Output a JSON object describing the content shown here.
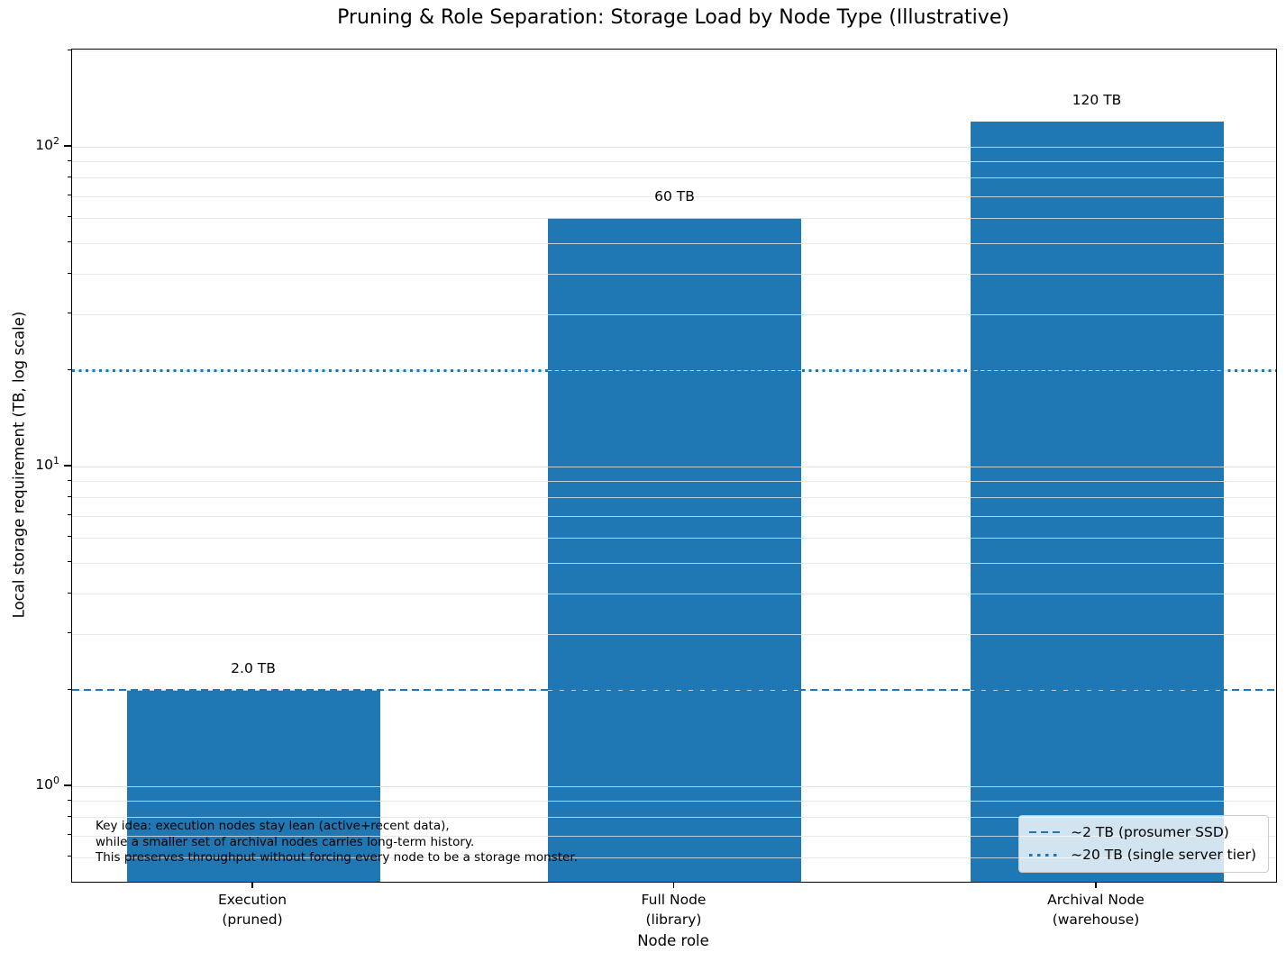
{
  "figure_title": "Pruning & Role Separation: Storage Load by Node Type (Illustrative)",
  "chart_data": {
    "type": "bar",
    "title": "Pruning & Role Separation: Storage Load by Node Type (Illustrative)",
    "xlabel": "Node role",
    "ylabel": "Local storage requirement (TB, log scale)",
    "yscale": "log",
    "ylim": [
      0.5,
      205
    ],
    "grid": {
      "axis": "y",
      "which": "both"
    },
    "categories": [
      "Execution\n(pruned)",
      "Full Node\n(library)",
      "Archival Node\n(warehouse)"
    ],
    "values": [
      2.0,
      60,
      120
    ],
    "bar_value_labels": [
      "2.0 TB",
      "60 TB",
      "120 TB"
    ],
    "bar_color": "#1f77b4",
    "yticks": [
      {
        "label": "10^0",
        "value": 1
      },
      {
        "label": "10^1",
        "value": 10
      },
      {
        "label": "10^2",
        "value": 100
      }
    ],
    "reference_lines": [
      {
        "value": 2,
        "style": "dashed",
        "color": "#1f77b4",
        "label": "~2 TB (prosumer SSD)"
      },
      {
        "value": 20,
        "style": "dotted",
        "color": "#1f77b4",
        "label": "~20 TB (single server tier)"
      }
    ],
    "legend": {
      "position": "lower right",
      "entries": [
        {
          "style": "dashed",
          "label": "~2 TB (prosumer SSD)"
        },
        {
          "style": "dotted",
          "label": "~20 TB (single server tier)"
        }
      ]
    },
    "annotation": {
      "lines": [
        "Key idea: execution nodes stay lean (active+recent data),",
        "while a smaller set of archival nodes carries long-term history.",
        "This preserves throughput without forcing every node to be a storage monster."
      ]
    }
  }
}
